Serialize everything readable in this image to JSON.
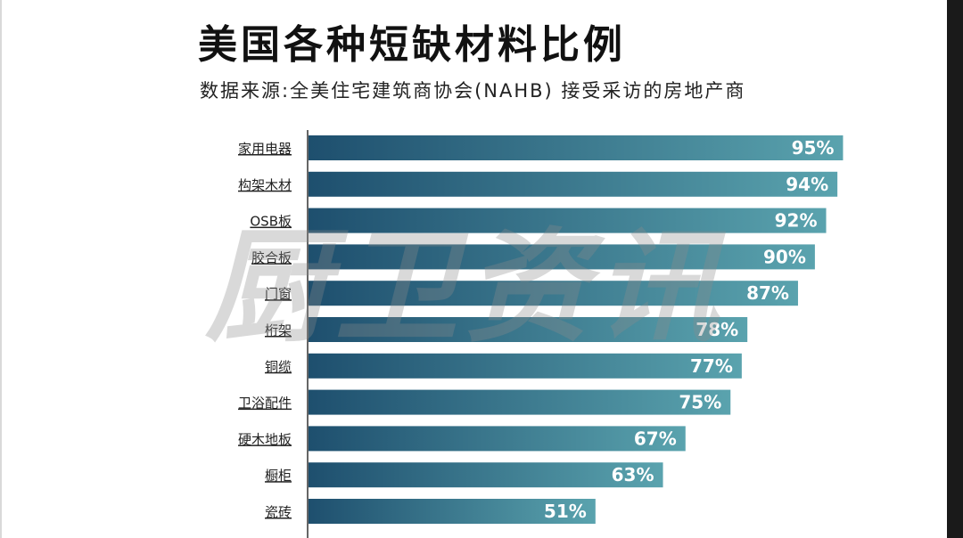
{
  "title": "美国各种短缺材料比例",
  "subtitle": "数据来源:全美住宅建筑商协会(NAHB) 接受采访的房地产商",
  "watermark": "厨卫资讯",
  "colors": {
    "bar_start": "#1e4f6e",
    "bar_end": "#5aa3ae",
    "axis": "#333333"
  },
  "chart_data": {
    "type": "bar",
    "orientation": "horizontal",
    "categories": [
      "家用电器",
      "构架木材",
      "OSB板",
      "胶合板",
      "门窗",
      "桁架",
      "铜缆",
      "卫浴配件",
      "硬木地板",
      "橱柜",
      "瓷砖"
    ],
    "values": [
      95,
      94,
      92,
      90,
      87,
      78,
      77,
      75,
      67,
      63,
      51
    ],
    "value_labels": [
      "95%",
      "94%",
      "92%",
      "90%",
      "87%",
      "78%",
      "77%",
      "75%",
      "67%",
      "63%",
      "51%"
    ],
    "xlim": [
      0,
      100
    ],
    "grid": false,
    "legend": "none"
  }
}
